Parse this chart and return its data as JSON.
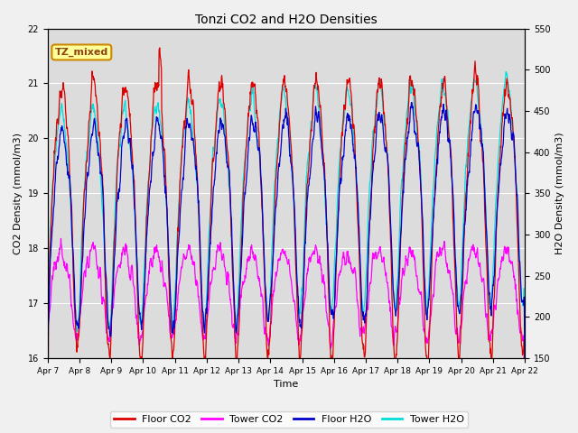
{
  "title": "Tonzi CO2 and H2O Densities",
  "xlabel": "Time",
  "ylabel_left": "CO2 Density (mmol/m3)",
  "ylabel_right": "H2O Density (mmol/m3)",
  "annotation": "TZ_mixed",
  "annotation_color": "#8B4513",
  "annotation_bg": "#FFFF99",
  "annotation_edge": "#CC8800",
  "ylim_left": [
    16.0,
    22.0
  ],
  "ylim_right": [
    150,
    550
  ],
  "x_tick_labels": [
    "Apr 7",
    "Apr 8",
    "Apr 9",
    "Apr 10",
    "Apr 11",
    "Apr 12",
    "Apr 13",
    "Apr 14",
    "Apr 15",
    "Apr 16",
    "Apr 17",
    "Apr 18",
    "Apr 19",
    "Apr 20",
    "Apr 21",
    "Apr 22"
  ],
  "colors": {
    "floor_co2": "#DD0000",
    "tower_co2": "#FF00FF",
    "floor_h2o": "#0000CC",
    "tower_h2o": "#00DDDD"
  },
  "legend_labels": [
    "Floor CO2",
    "Tower CO2",
    "Floor H2O",
    "Tower H2O"
  ],
  "plot_bg_color": "#DCDCDC",
  "fig_bg_color": "#F0F0F0",
  "n_points": 1440,
  "days": 15,
  "seed": 12345
}
